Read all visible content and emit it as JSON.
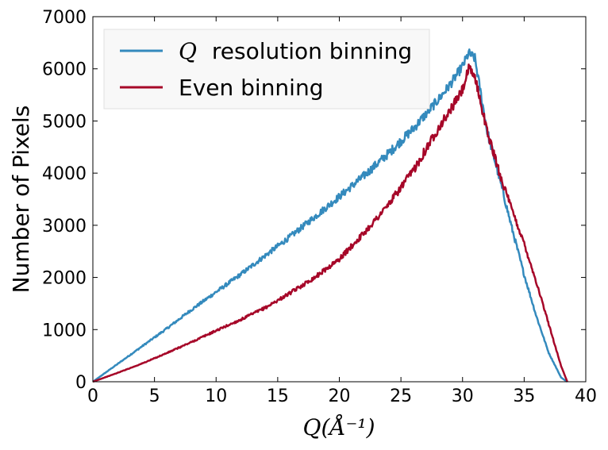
{
  "chart_data": {
    "type": "line",
    "title": "",
    "xlabel": "Q(Å⁻¹)",
    "ylabel": "Number of Pixels",
    "xlim": [
      0,
      40
    ],
    "ylim": [
      0,
      7000
    ],
    "xticks": [
      0,
      5,
      10,
      15,
      20,
      25,
      30,
      35,
      40
    ],
    "yticks": [
      0,
      1000,
      2000,
      3000,
      4000,
      5000,
      6000,
      7000
    ],
    "grid": false,
    "legend_position": "top-left",
    "series": [
      {
        "name": "Q resolution binning",
        "name_symbol": "Q",
        "name_rest": "resolution binning",
        "color": "#348abd",
        "x": [
          0,
          2,
          4,
          6,
          8,
          10,
          12,
          14,
          16,
          18,
          20,
          22,
          24,
          26,
          28,
          29,
          30,
          30.5,
          31,
          32,
          33,
          34,
          35,
          36,
          37,
          38,
          38.5
        ],
        "y": [
          0,
          340,
          680,
          1020,
          1380,
          1720,
          2060,
          2420,
          2780,
          3160,
          3550,
          3950,
          4380,
          4850,
          5400,
          5700,
          6050,
          6300,
          6200,
          4800,
          3900,
          2950,
          2050,
          1250,
          550,
          80,
          0
        ]
      },
      {
        "name": "Even binning",
        "color": "#a60628",
        "x": [
          0,
          2,
          4,
          6,
          8,
          10,
          12,
          14,
          16,
          18,
          20,
          22,
          24,
          26,
          28,
          29,
          30,
          30.5,
          31,
          32,
          33,
          34,
          35,
          36,
          37,
          38,
          38.5
        ],
        "y": [
          0,
          170,
          350,
          550,
          760,
          980,
          1190,
          1420,
          1700,
          2000,
          2350,
          2850,
          3400,
          4050,
          4850,
          5200,
          5600,
          6000,
          5850,
          4800,
          4000,
          3300,
          2650,
          1900,
          1100,
          300,
          0
        ]
      }
    ]
  }
}
